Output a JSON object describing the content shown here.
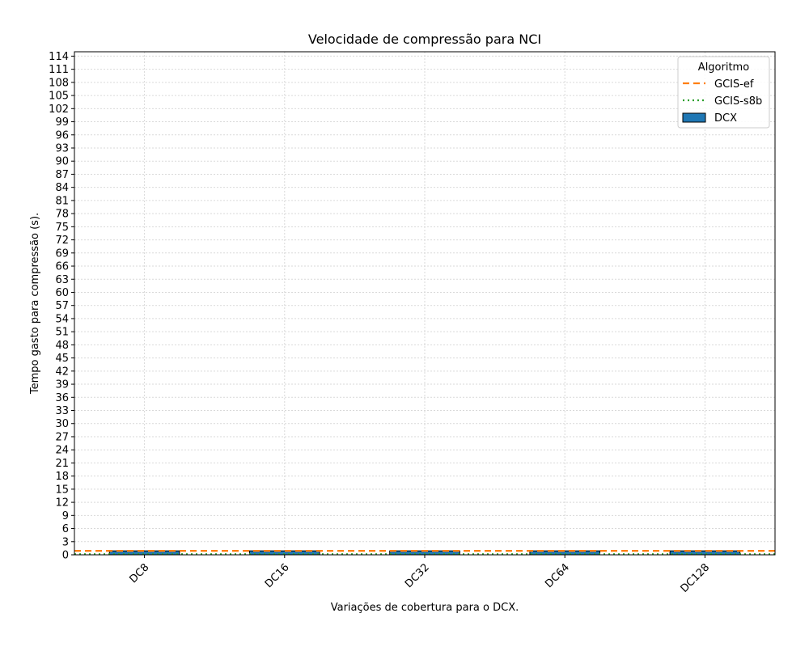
{
  "chart_data": {
    "type": "bar",
    "title": "Velocidade de compressão para  NCI",
    "xlabel": "Variações de cobertura para o DCX.",
    "ylabel": "Tempo gasto para compressão (s).",
    "categories": [
      "DC8",
      "DC16",
      "DC32",
      "DC64",
      "DC128"
    ],
    "series": [
      {
        "name": "DCX",
        "values": [
          0.9,
          0.9,
          0.9,
          0.9,
          0.9
        ],
        "color": "#1f77b4"
      }
    ],
    "reference_lines": [
      {
        "name": "GCIS-ef",
        "value": 0.9,
        "style": "dashed",
        "color": "#ff7f0e"
      },
      {
        "name": "GCIS-s8b",
        "value": 0.15,
        "style": "dotted",
        "color": "#2ca02c"
      }
    ],
    "ylim": [
      0,
      115
    ],
    "yticks": [
      0,
      3,
      6,
      9,
      12,
      15,
      18,
      21,
      24,
      27,
      30,
      33,
      36,
      39,
      42,
      45,
      48,
      51,
      54,
      57,
      60,
      63,
      66,
      69,
      72,
      75,
      78,
      81,
      84,
      87,
      90,
      93,
      96,
      99,
      102,
      105,
      108,
      111,
      114
    ],
    "grid": true,
    "legend": {
      "title": "Algoritmo",
      "placement": "top-right"
    }
  }
}
